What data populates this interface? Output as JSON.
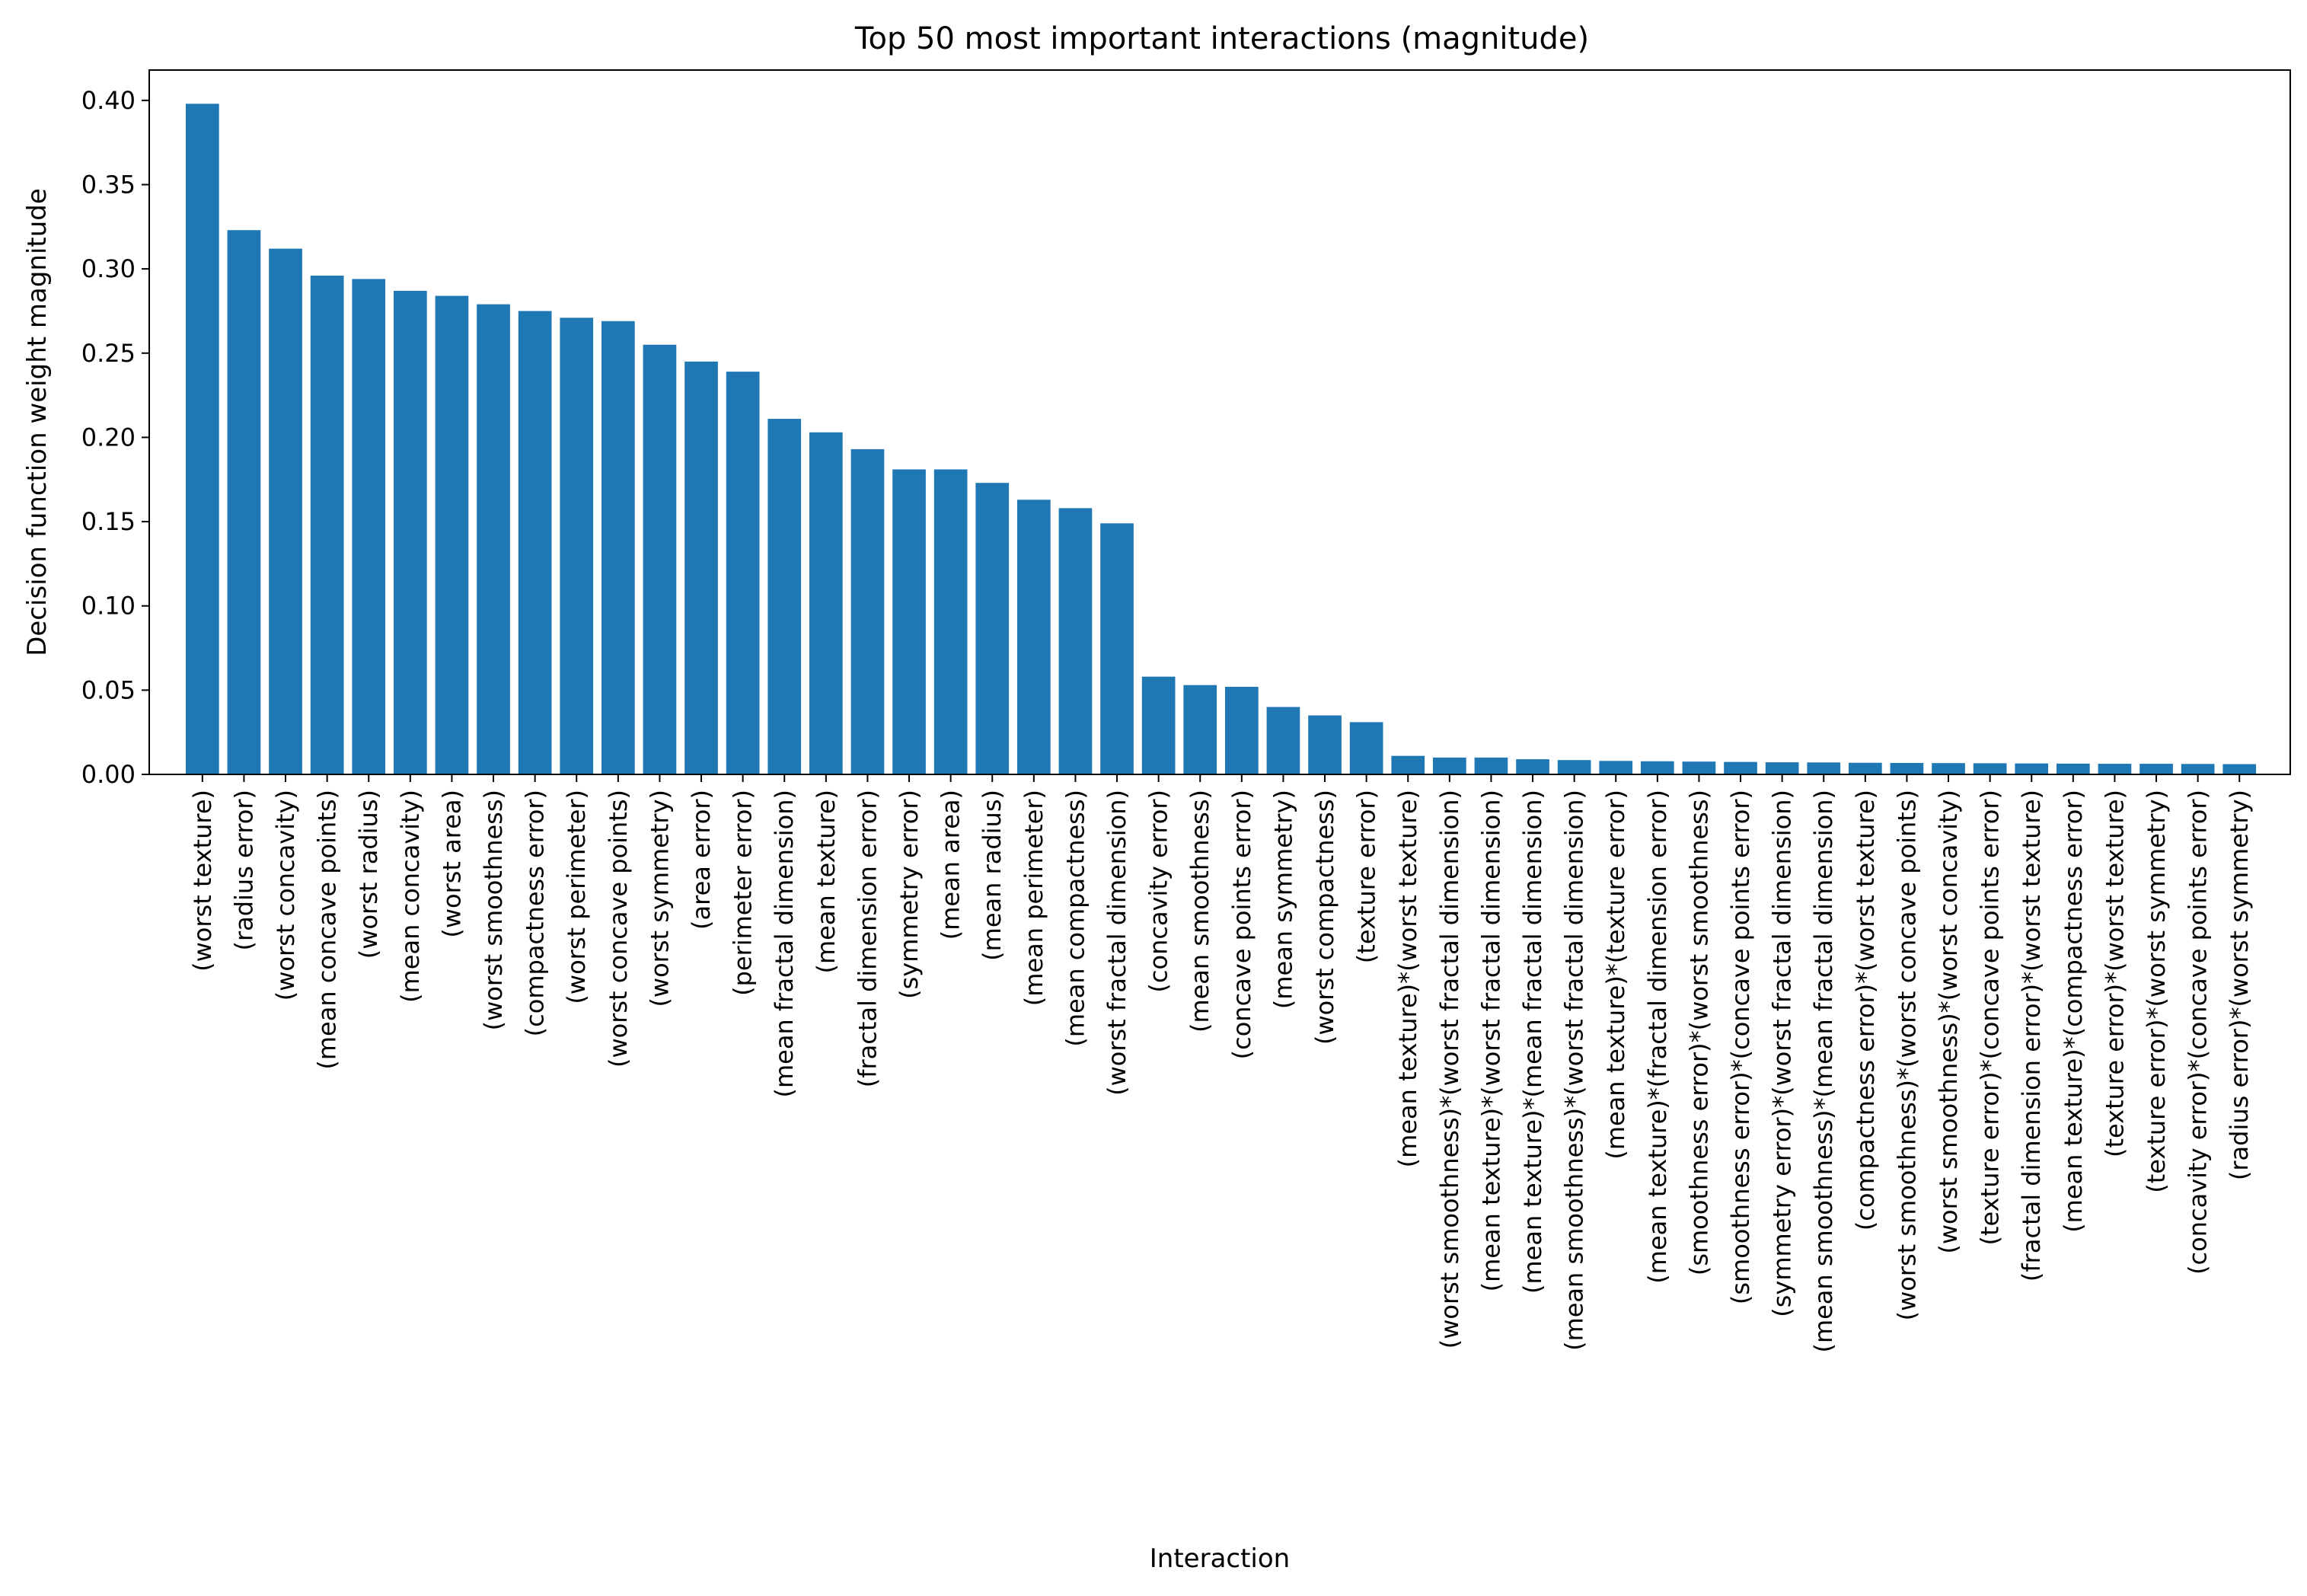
{
  "chart_data": {
    "type": "bar",
    "title": "Top 50 most important interactions (magnitude)",
    "xlabel": "Interaction",
    "ylabel": "Decision function weight magnitude",
    "ylim": [
      0,
      0.418
    ],
    "yticks": [
      "0.00",
      "0.05",
      "0.10",
      "0.15",
      "0.20",
      "0.25",
      "0.30",
      "0.35",
      "0.40"
    ],
    "grid": false,
    "bar_color": "#1f77b4",
    "categories": [
      "(worst texture)",
      "(radius error)",
      "(worst concavity)",
      "(mean concave points)",
      "(worst radius)",
      "(mean concavity)",
      "(worst area)",
      "(worst smoothness)",
      "(compactness error)",
      "(worst perimeter)",
      "(worst concave points)",
      "(worst symmetry)",
      "(area error)",
      "(perimeter error)",
      "(mean fractal dimension)",
      "(mean texture)",
      "(fractal dimension error)",
      "(symmetry error)",
      "(mean area)",
      "(mean radius)",
      "(mean perimeter)",
      "(mean compactness)",
      "(worst fractal dimension)",
      "(concavity error)",
      "(mean smoothness)",
      "(concave points error)",
      "(mean symmetry)",
      "(worst compactness)",
      "(texture error)",
      "(mean texture)*(worst texture)",
      "(worst smoothness)*(worst fractal dimension)",
      "(mean texture)*(worst fractal dimension)",
      "(mean texture)*(mean fractal dimension)",
      "(mean smoothness)*(worst fractal dimension)",
      "(mean texture)*(texture error)",
      "(mean texture)*(fractal dimension error)",
      "(smoothness error)*(worst smoothness)",
      "(smoothness error)*(concave points error)",
      "(symmetry error)*(worst fractal dimension)",
      "(mean smoothness)*(mean fractal dimension)",
      "(compactness error)*(worst texture)",
      "(worst smoothness)*(worst concave points)",
      "(worst smoothness)*(worst concavity)",
      "(texture error)*(concave points error)",
      "(fractal dimension error)*(worst texture)",
      "(mean texture)*(compactness error)",
      "(texture error)*(worst texture)",
      "(texture error)*(worst symmetry)",
      "(concavity error)*(concave points error)",
      "(radius error)*(worst symmetry)"
    ],
    "values": [
      0.398,
      0.323,
      0.312,
      0.296,
      0.294,
      0.287,
      0.284,
      0.279,
      0.275,
      0.271,
      0.269,
      0.255,
      0.245,
      0.239,
      0.211,
      0.203,
      0.193,
      0.181,
      0.181,
      0.173,
      0.163,
      0.158,
      0.149,
      0.058,
      0.053,
      0.052,
      0.04,
      0.035,
      0.031,
      0.011,
      0.01,
      0.01,
      0.009,
      0.0085,
      0.008,
      0.0078,
      0.0076,
      0.0074,
      0.0072,
      0.0071,
      0.0069,
      0.0068,
      0.0067,
      0.0066,
      0.0065,
      0.0064,
      0.0063,
      0.0063,
      0.0062,
      0.0061
    ]
  }
}
